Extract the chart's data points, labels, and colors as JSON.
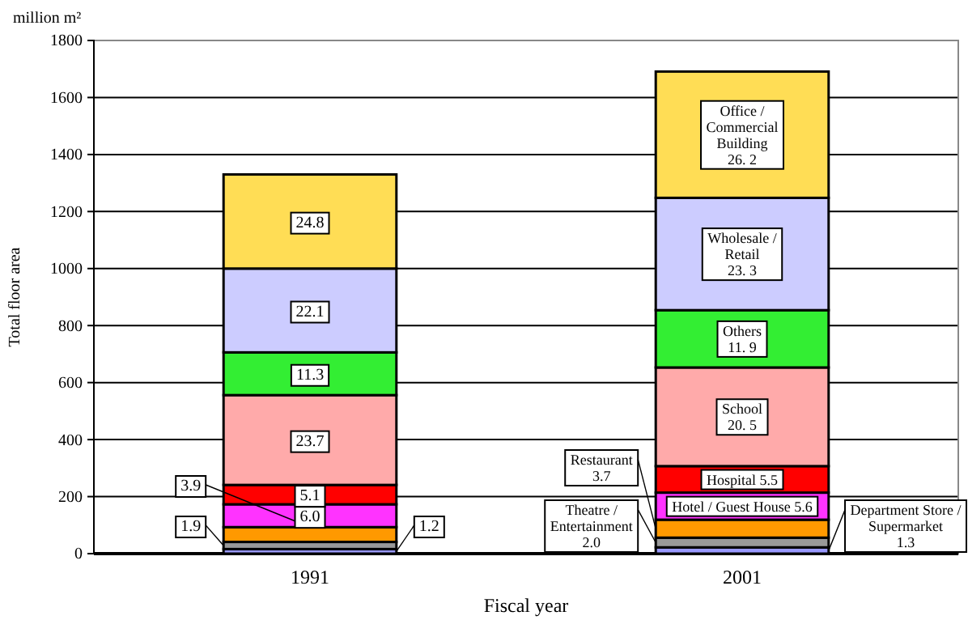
{
  "chart_data": {
    "type": "bar",
    "stacked": true,
    "xlabel": "Fiscal year",
    "ylabel": "Total floor area",
    "categories": [
      "1991",
      "2001"
    ],
    "ylim": [
      0,
      1800
    ],
    "yticks": [
      0,
      200,
      400,
      600,
      800,
      1000,
      1200,
      1400,
      1600,
      1800
    ],
    "grid": "y",
    "series": [
      {
        "name": "Department Store / Supermarket",
        "color": "#9999ff",
        "values": [
          16,
          22
        ]
      },
      {
        "name": "Theatre / Entertainment",
        "color": "#999999",
        "values": [
          25,
          34
        ]
      },
      {
        "name": "Restaurant",
        "color": "#ff9900",
        "values": [
          52,
          63
        ]
      },
      {
        "name": "Hotel / Guest House",
        "color": "#ff33ff",
        "values": [
          80,
          95
        ]
      },
      {
        "name": "Hospital",
        "color": "#ff0000",
        "values": [
          68,
          93
        ]
      },
      {
        "name": "School",
        "color": "#ffaaaa",
        "values": [
          315,
          346
        ]
      },
      {
        "name": "Others",
        "color": "#33ee33",
        "values": [
          150,
          201
        ]
      },
      {
        "name": "Wholesale / Retail",
        "color": "#ccccff",
        "values": [
          294,
          394
        ]
      },
      {
        "name": "Office / Commercial Building",
        "color": "#ffdd55",
        "values": [
          330,
          443
        ]
      }
    ],
    "annotations": [
      "1.2",
      "1.9",
      {
        "text": "3.9",
        "x": "1991",
        "y": 93
      },
      "6.0",
      "5.1",
      "23.7",
      "11.3",
      "22.1",
      "24.8",
      "1.3",
      "2.0",
      "3.7",
      "5.6",
      "5.5",
      "20. 5",
      "11. 9",
      "23. 3",
      "26. 2",
      "million m²"
    ]
  }
}
